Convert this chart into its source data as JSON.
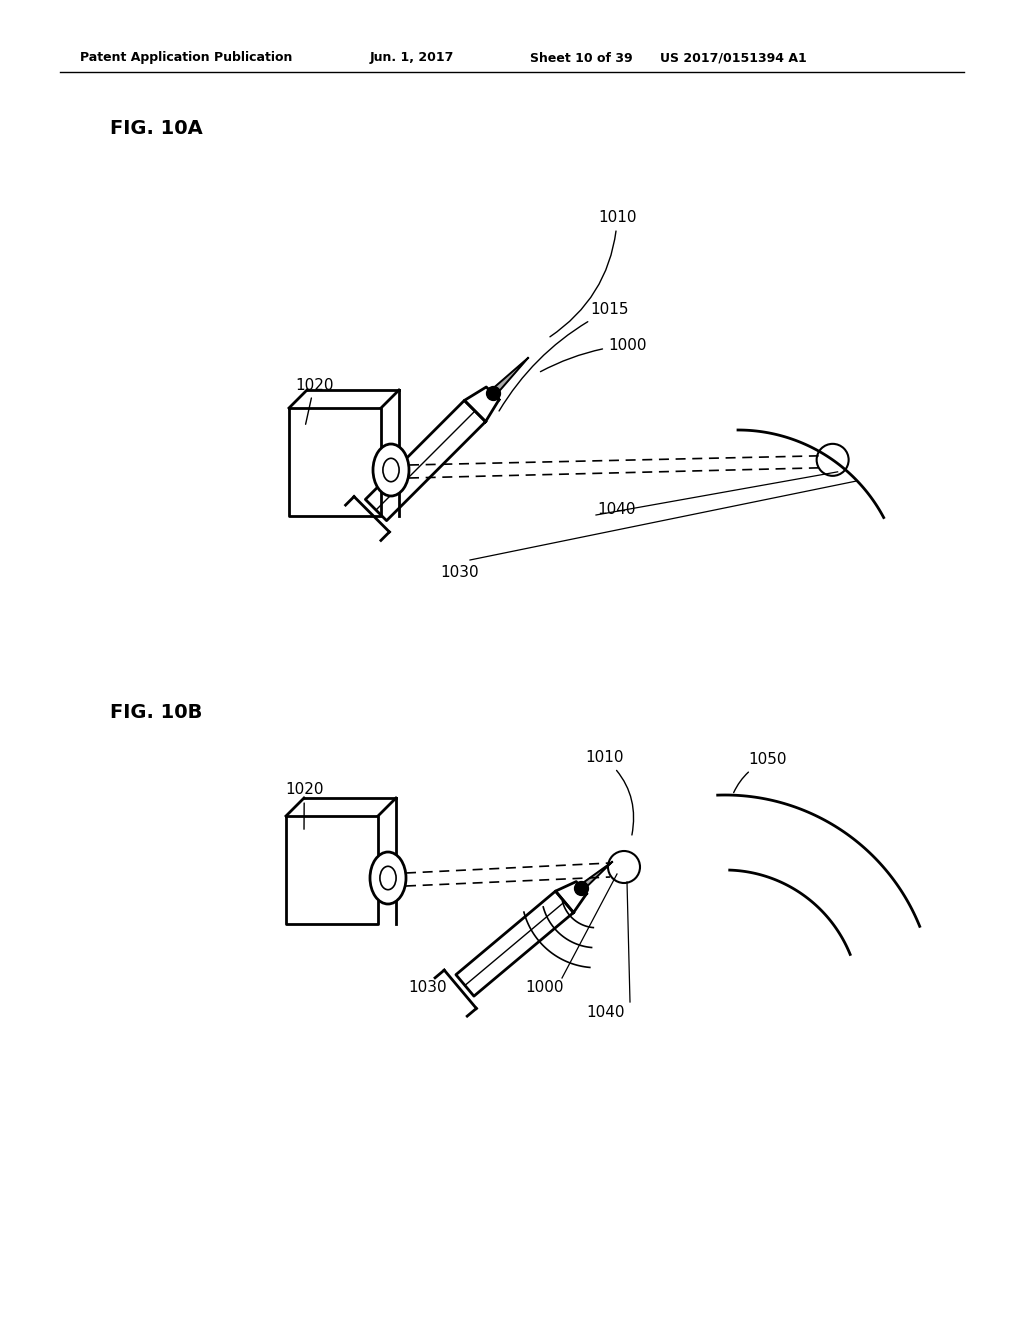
{
  "background_color": "#ffffff",
  "header_text": "Patent Application Publication",
  "header_date": "Jun. 1, 2017",
  "header_sheet": "Sheet 10 of 39",
  "header_patent": "US 2017/0151394 A1",
  "fig_10a_label": "FIG. 10A",
  "fig_10b_label": "FIG. 10B"
}
